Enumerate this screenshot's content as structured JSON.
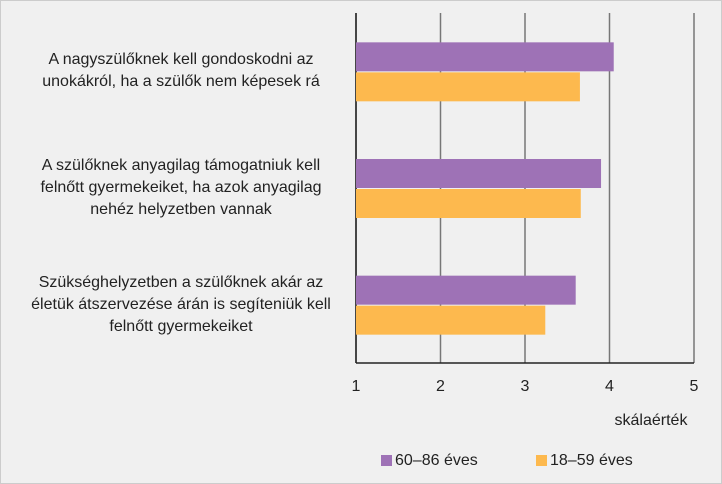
{
  "chart_data": {
    "type": "bar",
    "orientation": "horizontal",
    "categories": [
      "A nagyszülőknek kell gondoskodni az unokákról, ha a szülők nem képesek rá",
      "A szülőknek anyagilag támogatniuk kell felnőtt gyermekeiket, ha azok anyagilag nehéz helyzetben vannak",
      "Szükséghelyzetben a szülőknek akár az életük átszervezése árán is segíteniük kell felnőtt gyermekeiket"
    ],
    "series": [
      {
        "name": "60–86 éves",
        "color": "#9e72b6",
        "values": [
          4.05,
          3.9,
          3.6
        ]
      },
      {
        "name": "18–59 éves",
        "color": "#fdb94e",
        "values": [
          3.65,
          3.66,
          3.24
        ]
      }
    ],
    "xlabel": "skálaérték",
    "xlim": [
      1,
      5
    ],
    "xticks": [
      1,
      2,
      3,
      4,
      5
    ],
    "grid": true
  }
}
